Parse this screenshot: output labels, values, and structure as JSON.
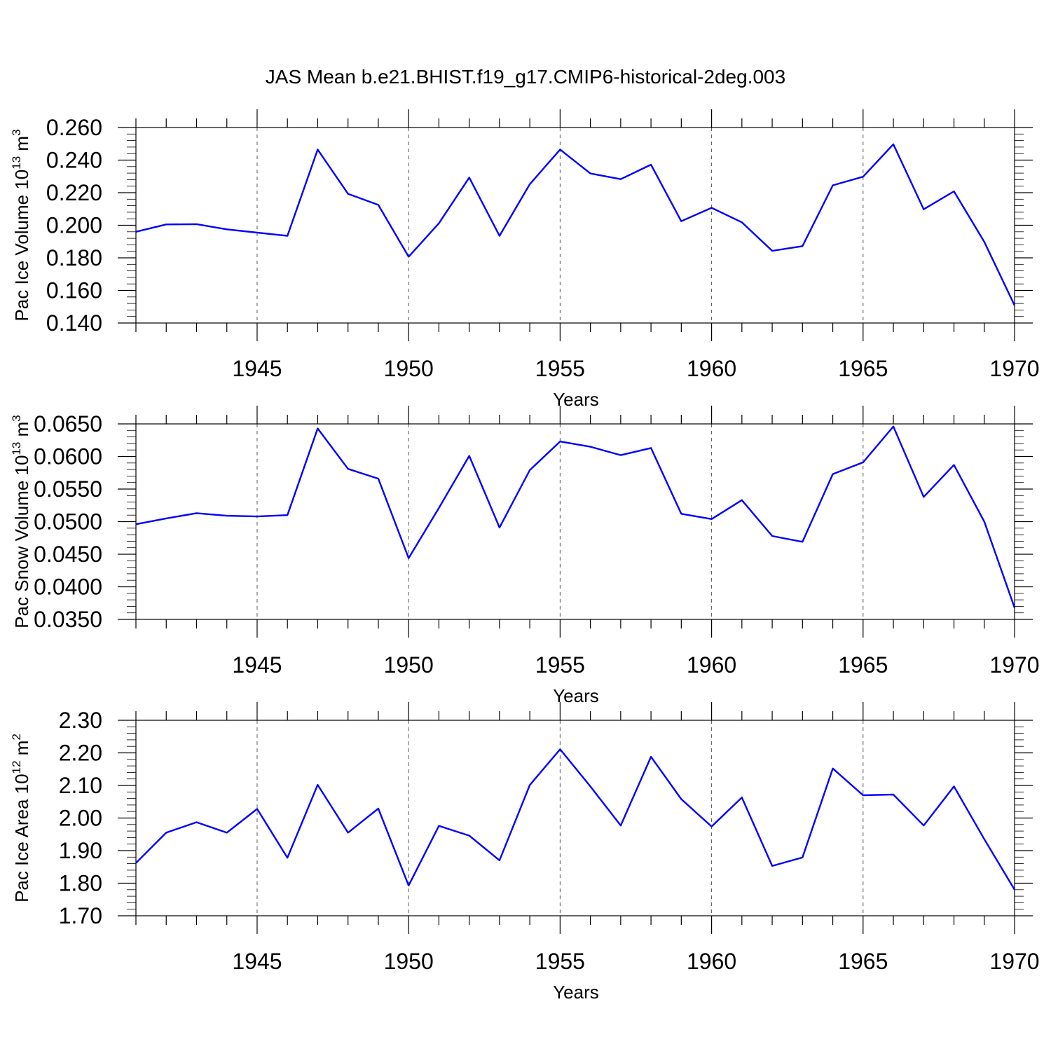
{
  "title": "JAS Mean b.e21.BHIST.f19_g17.CMIP6-historical-2deg.003",
  "colors": {
    "line": "#0000ff",
    "axis": "#000000",
    "grid": "#555555"
  },
  "chart_data": [
    {
      "type": "line",
      "xlabel": "Years",
      "ylabel": "Pac Ice Volume 10",
      "ylabel_exp": "13",
      "ylabel_unit": " m",
      "ylabel_unit_exp": "3",
      "xlim": [
        1941,
        1970
      ],
      "xticks": [
        1945,
        1950,
        1955,
        1960,
        1965,
        1970
      ],
      "ylim": [
        0.14,
        0.26
      ],
      "yticks": [
        "0.140",
        "0.160",
        "0.180",
        "0.200",
        "0.220",
        "0.240",
        "0.260"
      ],
      "grid": "vertical dashed at major x ticks",
      "x": [
        1941,
        1942,
        1943,
        1944,
        1945,
        1946,
        1947,
        1948,
        1949,
        1950,
        1951,
        1952,
        1953,
        1954,
        1955,
        1956,
        1957,
        1958,
        1959,
        1960,
        1961,
        1962,
        1963,
        1964,
        1965,
        1966,
        1967,
        1968,
        1969,
        1970
      ],
      "y": [
        0.196,
        0.2005,
        0.2007,
        0.1975,
        0.1955,
        0.1935,
        0.2465,
        0.2193,
        0.2125,
        0.1807,
        0.2012,
        0.2293,
        0.1935,
        0.2252,
        0.2465,
        0.2318,
        0.2283,
        0.2372,
        0.2025,
        0.2107,
        0.2018,
        0.1843,
        0.1872,
        0.2245,
        0.2298,
        0.2497,
        0.2098,
        0.2208,
        0.1898,
        0.1508
      ]
    },
    {
      "type": "line",
      "xlabel": "Years",
      "ylabel": "Pac Snow Volume 10",
      "ylabel_exp": "13",
      "ylabel_unit": " m",
      "ylabel_unit_exp": "3",
      "xlim": [
        1941,
        1970
      ],
      "xticks": [
        1945,
        1950,
        1955,
        1960,
        1965,
        1970
      ],
      "ylim": [
        0.035,
        0.065
      ],
      "yticks": [
        "0.0350",
        "0.0400",
        "0.0450",
        "0.0500",
        "0.0550",
        "0.0600",
        "0.0650"
      ],
      "grid": "vertical dashed at major x ticks",
      "x": [
        1941,
        1942,
        1943,
        1944,
        1945,
        1946,
        1947,
        1948,
        1949,
        1950,
        1951,
        1952,
        1953,
        1954,
        1955,
        1956,
        1957,
        1958,
        1959,
        1960,
        1961,
        1962,
        1963,
        1964,
        1965,
        1966,
        1967,
        1968,
        1969,
        1970
      ],
      "y": [
        0.0496,
        0.0505,
        0.0513,
        0.0509,
        0.0508,
        0.051,
        0.0643,
        0.0581,
        0.0566,
        0.0444,
        0.0521,
        0.0601,
        0.0491,
        0.0579,
        0.0623,
        0.0615,
        0.0602,
        0.0613,
        0.0512,
        0.0504,
        0.0533,
        0.0478,
        0.0469,
        0.0573,
        0.0591,
        0.0646,
        0.0538,
        0.0587,
        0.05,
        0.0368
      ]
    },
    {
      "type": "line",
      "xlabel": "Years",
      "ylabel": "Pac Ice Area 10",
      "ylabel_exp": "12",
      "ylabel_unit": " m",
      "ylabel_unit_exp": "2",
      "xlim": [
        1941,
        1970
      ],
      "xticks": [
        1945,
        1950,
        1955,
        1960,
        1965,
        1970
      ],
      "ylim": [
        1.7,
        2.3
      ],
      "yticks": [
        "1.70",
        "1.80",
        "1.90",
        "2.00",
        "2.10",
        "2.20",
        "2.30"
      ],
      "grid": "vertical dashed at major x ticks",
      "x": [
        1941,
        1942,
        1943,
        1944,
        1945,
        1946,
        1947,
        1948,
        1949,
        1950,
        1951,
        1952,
        1953,
        1954,
        1955,
        1956,
        1957,
        1958,
        1959,
        1960,
        1961,
        1962,
        1963,
        1964,
        1965,
        1966,
        1967,
        1968,
        1969,
        1970
      ],
      "y": [
        1.862,
        1.955,
        1.987,
        1.955,
        2.028,
        1.878,
        2.102,
        1.955,
        2.029,
        1.793,
        1.976,
        1.946,
        1.87,
        2.101,
        2.211,
        2.097,
        1.977,
        2.188,
        2.058,
        1.974,
        2.063,
        1.853,
        1.879,
        2.152,
        2.07,
        2.072,
        1.977,
        2.097,
        1.935,
        1.78
      ]
    }
  ]
}
